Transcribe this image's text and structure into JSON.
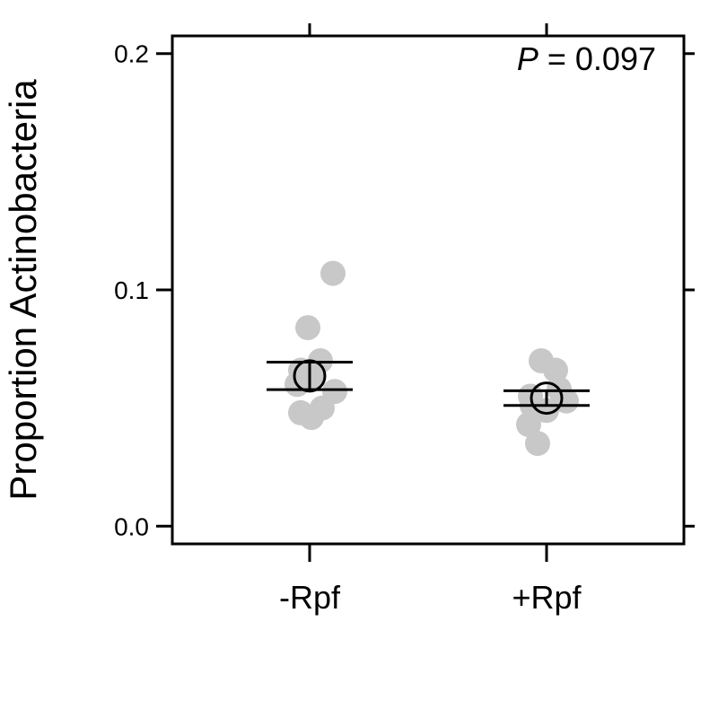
{
  "chart_data": {
    "type": "scatter",
    "title": "",
    "xlabel": "",
    "ylabel": "Proportion Actinobacteria",
    "ylim": [
      -0.0075,
      0.2075
    ],
    "yticks": [
      0.0,
      0.1,
      0.2
    ],
    "ytick_labels": [
      "0.0",
      "0.1",
      "0.2"
    ],
    "categories": [
      "-Rpf",
      "+Rpf"
    ],
    "groups": [
      {
        "category": "-Rpf",
        "points": [
          0.107,
          0.084,
          0.07,
          0.066,
          0.063,
          0.06,
          0.057,
          0.05,
          0.048,
          0.046
        ],
        "mean": 0.0636,
        "se_upper": 0.0694,
        "se_lower": 0.0578
      },
      {
        "category": "+Rpf",
        "points": [
          0.07,
          0.066,
          0.058,
          0.055,
          0.053,
          0.051,
          0.049,
          0.043,
          0.035
        ],
        "mean": 0.0542,
        "se_upper": 0.0573,
        "se_lower": 0.0511
      }
    ],
    "annotation": {
      "italic_part": "P",
      "rest": " = 0.097"
    },
    "colors": {
      "points": "#c8c8c8",
      "mean": "#000000",
      "axis": "#000000"
    },
    "grid": false,
    "legend": "none"
  }
}
